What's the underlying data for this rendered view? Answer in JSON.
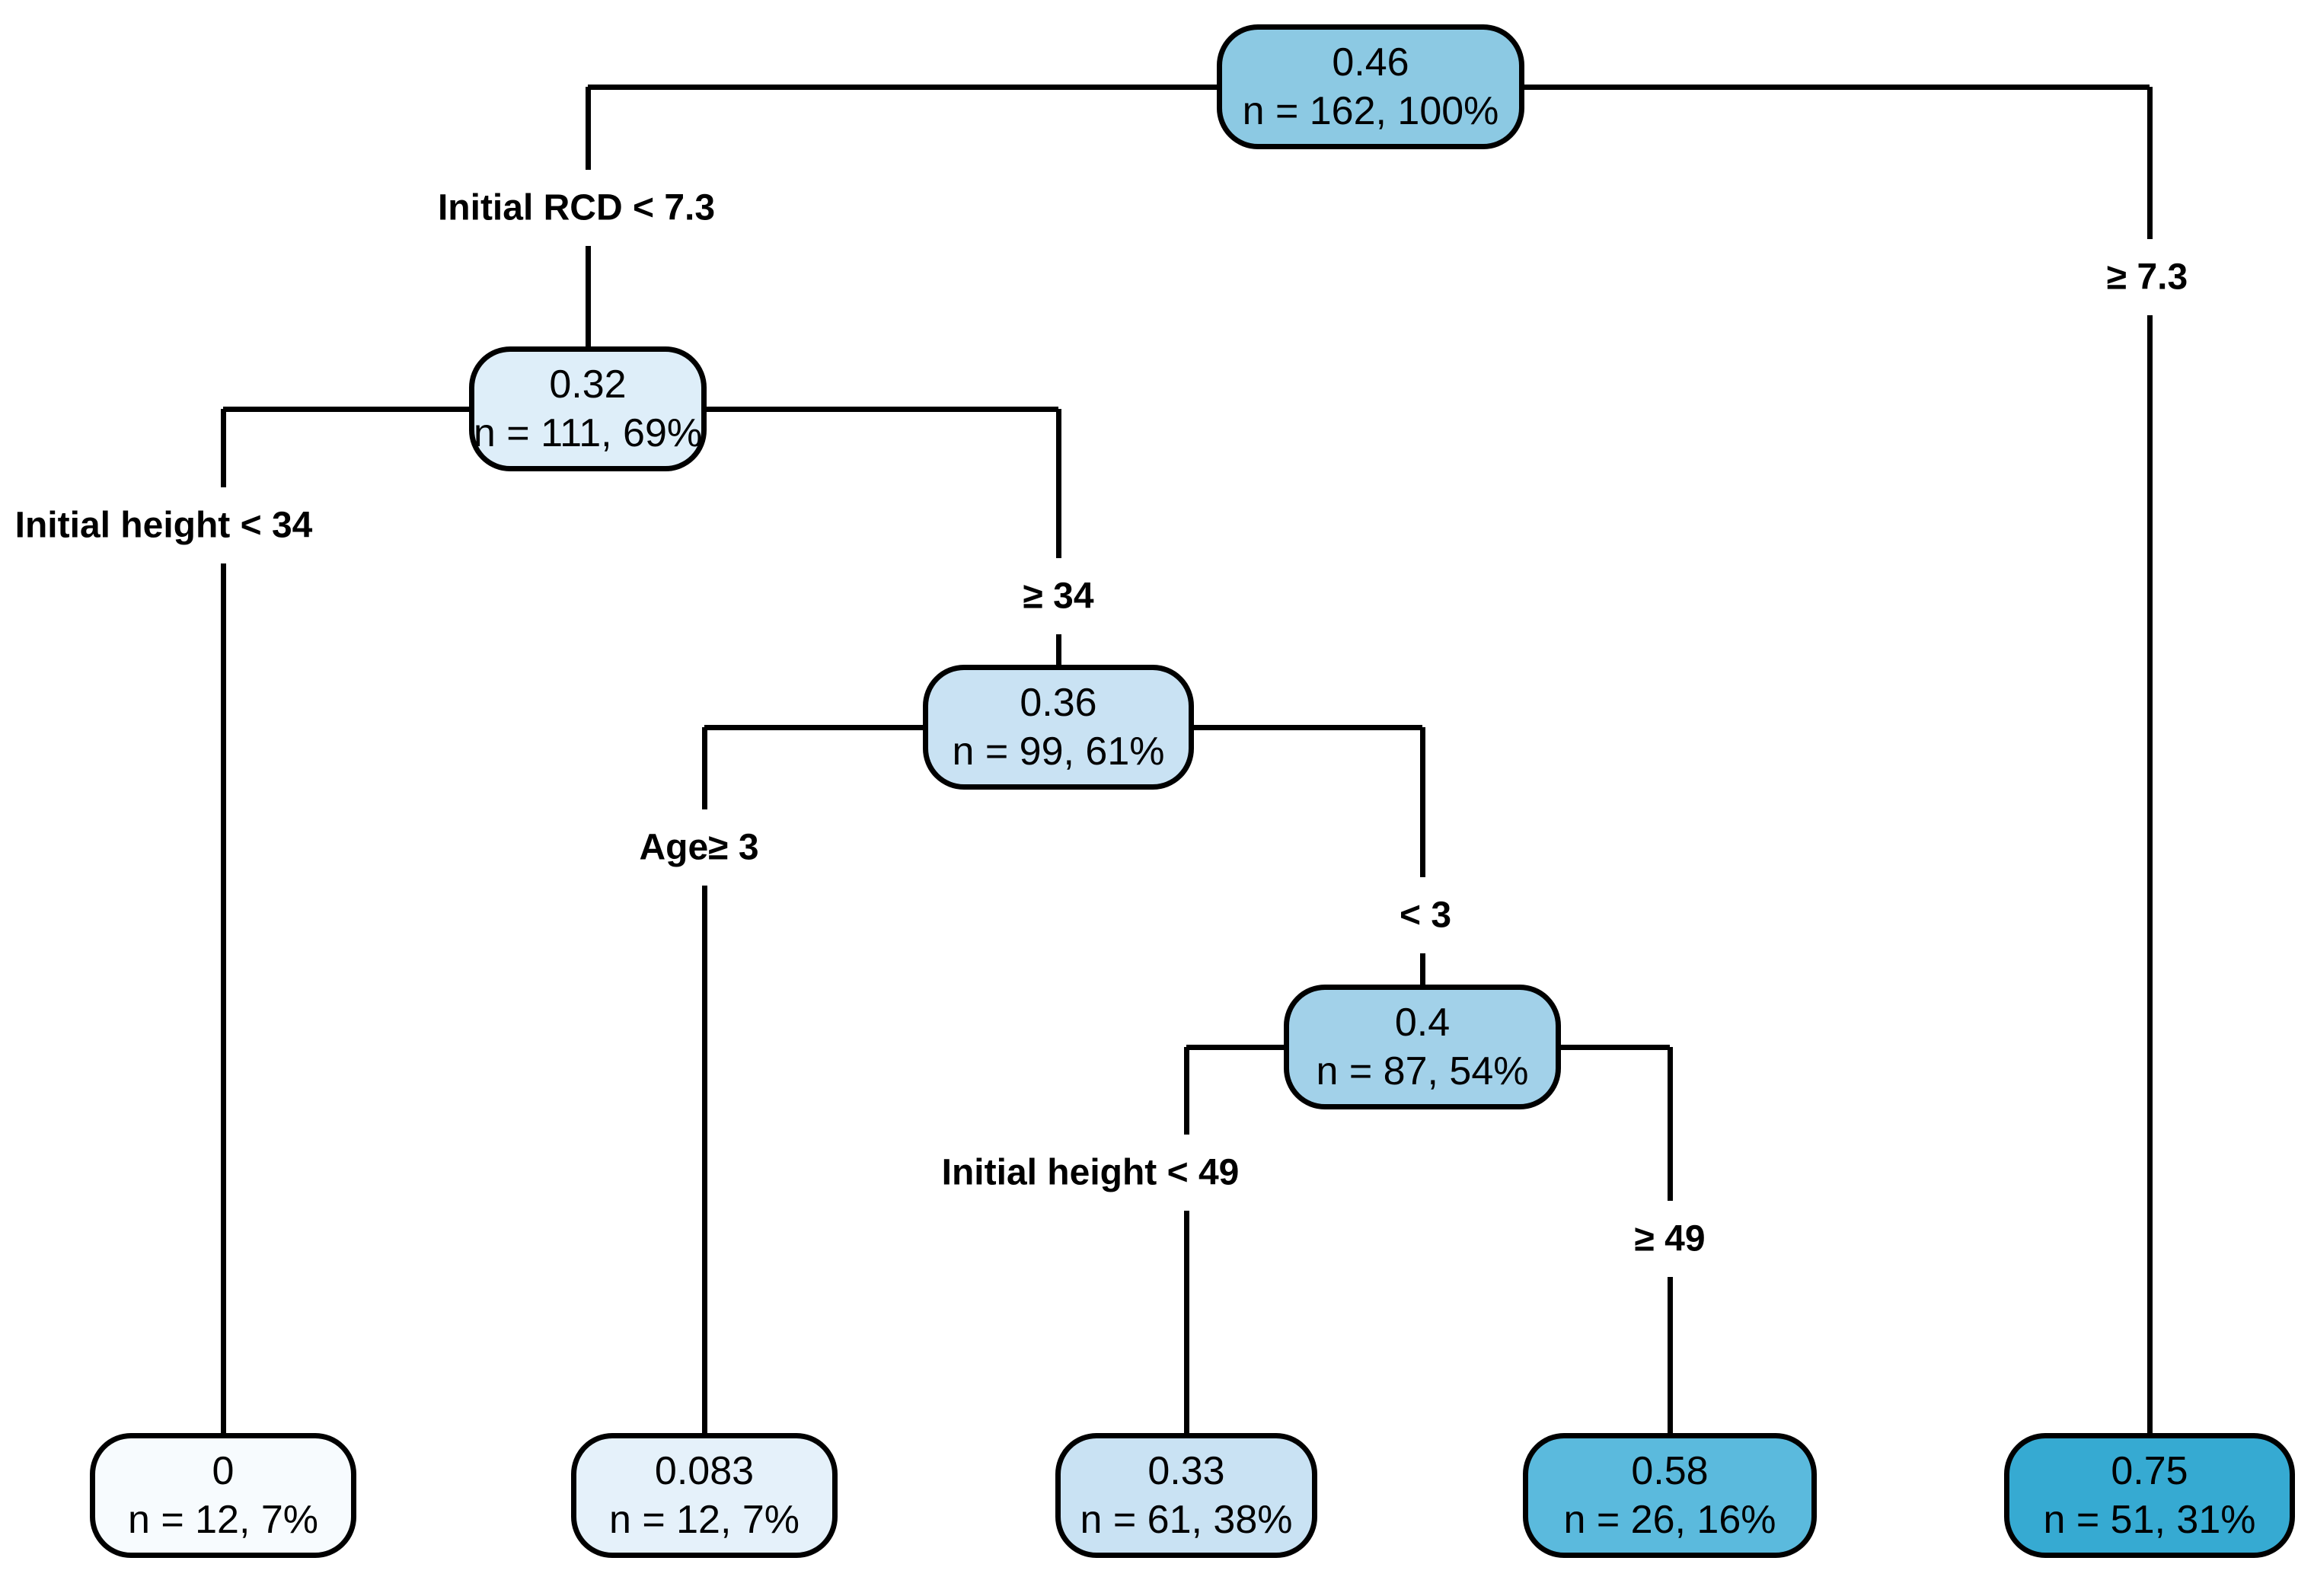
{
  "figure": {
    "type": "decision-tree",
    "background_color": "#ffffff",
    "line_color": "#000000",
    "text_color": "#000000"
  },
  "tree": {
    "nodes": {
      "root": {
        "value": "0.46",
        "n_line": "n = 162, 100%",
        "fill": "#8cc9e3"
      },
      "n32": {
        "value": "0.32",
        "n_line": "n = 111, 69%",
        "fill": "#deeef9"
      },
      "n36": {
        "value": "0.36",
        "n_line": "n = 99, 61%",
        "fill": "#c9e2f3"
      },
      "n40": {
        "value": "0.4",
        "n_line": "n = 87, 54%",
        "fill": "#a2d1e9"
      },
      "leaf1": {
        "value": "0",
        "n_line": "n = 12, 7%",
        "fill": "#f7fbfe"
      },
      "leaf2": {
        "value": "0.083",
        "n_line": "n = 12, 7%",
        "fill": "#e5f1fa"
      },
      "leaf3": {
        "value": "0.33",
        "n_line": "n = 61, 38%",
        "fill": "#c9e2f3"
      },
      "leaf4": {
        "value": "0.58",
        "n_line": "n = 26, 16%",
        "fill": "#5bbadd"
      },
      "leaf5": {
        "value": "0.75",
        "n_line": "n = 51, 31%",
        "fill": "#36aad2"
      }
    },
    "splits": [
      {
        "variable": "Initial RCD",
        "left_label": "Initial RCD < 7.3",
        "right_label": "≥ 7.3"
      },
      {
        "variable": "Initial height",
        "left_label": "Initial height < 34",
        "right_label": "≥ 34"
      },
      {
        "variable": "Age",
        "left_label": "Age≥ 3",
        "right_label": "< 3"
      },
      {
        "variable": "Initial height",
        "left_label": "Initial height < 49",
        "right_label": "≥ 49"
      }
    ]
  }
}
